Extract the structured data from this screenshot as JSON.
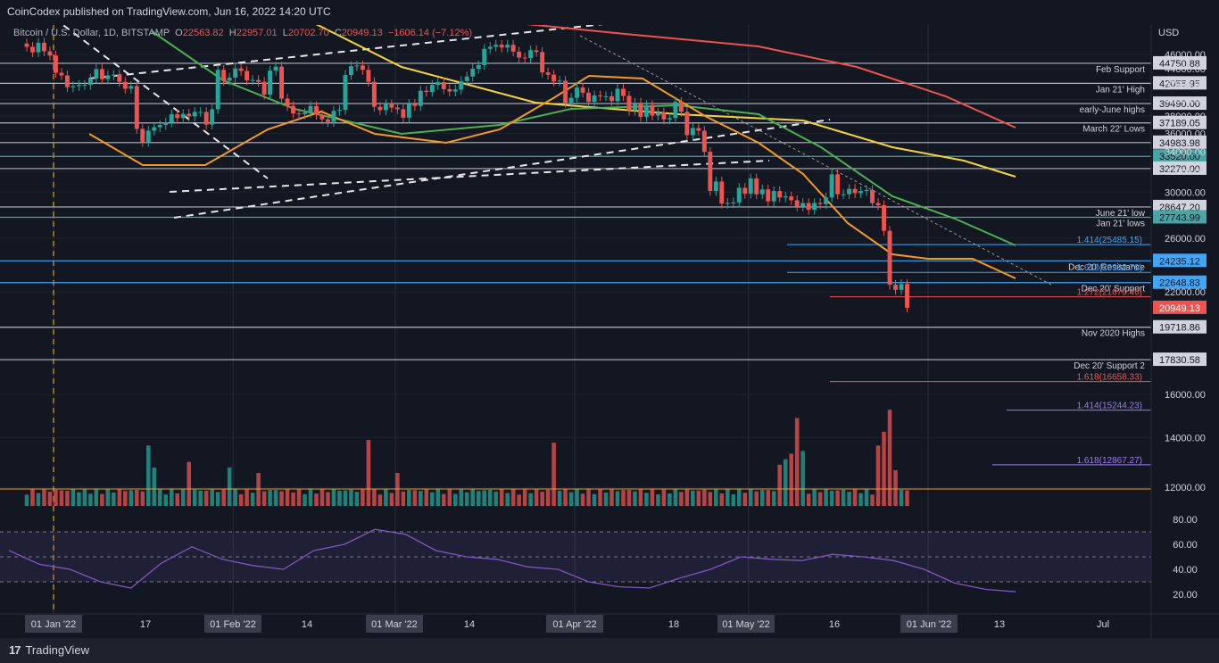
{
  "header": {
    "publisher": "CoinCodex published on TradingView.com, Jun 16, 2022 14:20 UTC",
    "symbol": "Bitcoin / U.S. Dollar, 1D, BITSTAMP",
    "open_label": "O",
    "open": "22563.82",
    "high_label": "H",
    "high": "22957.01",
    "low_label": "L",
    "low": "20702.70",
    "close_label": "C",
    "close": "20949.13",
    "change": "−1606.14 (−7.12%)"
  },
  "footer": {
    "brand": "TradingView"
  },
  "colors": {
    "background": "#131722",
    "up": "#26a69a",
    "down": "#ef5350",
    "ma_200": "#ef5350",
    "ma_100": "#f5d33e",
    "ma_50": "#4caf50",
    "ma_20": "#f59a23",
    "rsi": "#7e57c2",
    "support_line": "#b2b5be",
    "fib_blue": "#42a5f5",
    "fib_purple": "#9c7bf2"
  },
  "chart_data": [
    {
      "type": "candlestick",
      "title": "Bitcoin / U.S. Dollar, 1D, BITSTAMP",
      "y_axis_label": "USD",
      "y_range": [
        10000,
        48000
      ],
      "y_scale": "log",
      "grid": true,
      "x_ticks": [
        "01 Jan '22",
        "17",
        "01 Feb '22",
        "14",
        "01 Mar '22",
        "14",
        "01 Apr '22",
        "18",
        "01 May '22",
        "16",
        "01 Jun '22",
        "13",
        "Jul"
      ],
      "y_ticks": [
        "46000.00",
        "44000.00",
        "42000.00",
        "40000.00",
        "38000.00",
        "36000.00",
        "34000.00",
        "32000.00",
        "30000.00",
        "26000.00",
        "22000.00",
        "16000.00",
        "14000.00",
        "12000.00"
      ],
      "approx_daily_closes_start": "2021-12-30",
      "approx_daily_closes": [
        47100,
        46300,
        47700,
        46450,
        45850,
        43450,
        43100,
        41550,
        41700,
        41850,
        41850,
        42700,
        43950,
        42600,
        43100,
        43200,
        42250,
        41350,
        41700,
        36500,
        35050,
        36300,
        36700,
        36950,
        37250,
        38200,
        37750,
        38250,
        37950,
        38480,
        38480,
        37000,
        38800,
        43850,
        42400,
        42800,
        44050,
        43700,
        42450,
        42500,
        42250,
        40600,
        43750,
        44300,
        40100,
        39200,
        38300,
        38200,
        38400,
        39200,
        38150,
        37600,
        37300,
        38600,
        38720,
        43150,
        44350,
        44450,
        43850,
        42250,
        39100,
        38700,
        39400,
        39000,
        38800,
        37800,
        39450,
        39200,
        41100,
        40950,
        41850,
        42200,
        41300,
        41000,
        41250,
        42350,
        42950,
        44000,
        44500,
        46800,
        47100,
        47400,
        47000,
        47400,
        46400,
        45550,
        45500,
        46600,
        46350,
        43500,
        43200,
        42300,
        42400,
        39600,
        40200,
        41500,
        40850,
        39700,
        40500,
        40400,
        40400,
        39800,
        41350,
        40450,
        38650,
        39600,
        37900,
        39300,
        38050,
        38400,
        37600,
        37750,
        39700,
        38500,
        35800,
        36600,
        36300,
        34000,
        30100,
        31000,
        28950,
        29000,
        29050,
        30400,
        29850,
        31300,
        29800,
        30250,
        29150,
        30100,
        29500,
        29600,
        29250,
        28700,
        29000,
        28400,
        29000,
        28900,
        29500,
        31700,
        29800,
        29800,
        30300,
        29900,
        30100,
        30200,
        29000,
        28800,
        26600,
        22500,
        22150,
        22550,
        20950
      ],
      "horizontal_levels": [
        {
          "label": "Feb Support",
          "value": "44750.88",
          "color": "#b2b5be"
        },
        {
          "label": "Jan 21' High",
          "value": "42055.95",
          "color": "#b2b5be"
        },
        {
          "label": "early-June highs",
          "value": "39490.00",
          "color": "#b2b5be"
        },
        {
          "label": "March 22' Lows",
          "value": "37189.05",
          "color": "#b2b5be"
        },
        {
          "label": "",
          "value": "34983.98",
          "color": "#b2b5be"
        },
        {
          "label": "",
          "value": "33520.00",
          "color": "#4ba3a3"
        },
        {
          "label": "",
          "value": "32270.00",
          "color": "#b2b5be"
        },
        {
          "label": "June 21' low",
          "value": "28647.20",
          "color": "#b2b5be"
        },
        {
          "label": "Jan 21' lows",
          "value": "27743.99",
          "color": "#4ba3a3"
        },
        {
          "label": "Dec 20' Resistance",
          "value": "24235.12",
          "color": "#42a5f5"
        },
        {
          "label": "Dec 20' Support",
          "value": "22648.83",
          "color": "#42a5f5"
        },
        {
          "label": "Nov 2020 Highs",
          "value": "19718.86",
          "color": "#b2b5be"
        },
        {
          "label": "Dec 20' Support 2",
          "value": "17830.58",
          "color": "#b2b5be"
        }
      ],
      "fib_levels": [
        {
          "label": "1.414(25485.15)",
          "color": "#42a5f5"
        },
        {
          "label": "1.618(23382.79)",
          "color": "#42a5f5"
        },
        {
          "label": "1.272(21670.46)",
          "color": "#ef5350"
        },
        {
          "label": "1.618(16658.33)",
          "color": "#ef5350"
        },
        {
          "label": "1.414(15244.23)",
          "color": "#9c7bf2"
        },
        {
          "label": "1.618(12867.27)",
          "color": "#9c7bf2"
        }
      ],
      "price_badges": [
        {
          "value": "20949.13",
          "color": "#ef5350"
        }
      ],
      "moving_averages": [
        {
          "approx_period": 200,
          "color": "#ef5350",
          "approx_values_jan1_to_jun15": [
            49500,
            47000,
            42700,
            40300
          ]
        },
        {
          "approx_period": 100,
          "color": "#f5d33e",
          "approx_values_jan1_to_jun15": [
            51000,
            44000,
            40600,
            36300
          ]
        },
        {
          "approx_period": 50,
          "color": "#4caf50",
          "approx_values_jan1_to_jun15": [
            52000,
            38500,
            41500,
            30900
          ]
        },
        {
          "approx_period": 20,
          "color": "#f59a23",
          "approx_values_jan1_to_jun15": [
            45000,
            38500,
            43000,
            28400
          ]
        }
      ]
    },
    {
      "type": "bar",
      "title": "Volume",
      "unit": "relative",
      "approx_relative_values": "low and flat most of the period, spikes around Jan 22, Feb 28, May 9-12 and Jun 13-14"
    },
    {
      "type": "line",
      "title": "RSI",
      "y_range": [
        15,
        85
      ],
      "y_ticks": [
        "80.00",
        "60.00",
        "40.00",
        "20.00"
      ],
      "bands": [
        30,
        70
      ],
      "approx_values_jan1_to_jun15": [
        55,
        44,
        40,
        30,
        25,
        45,
        58,
        48,
        43,
        40,
        55,
        60,
        72,
        68,
        55,
        50,
        48,
        42,
        40,
        30,
        26,
        25,
        33,
        40,
        50,
        48,
        47,
        52,
        50,
        47,
        40,
        29,
        24,
        22
      ]
    }
  ]
}
